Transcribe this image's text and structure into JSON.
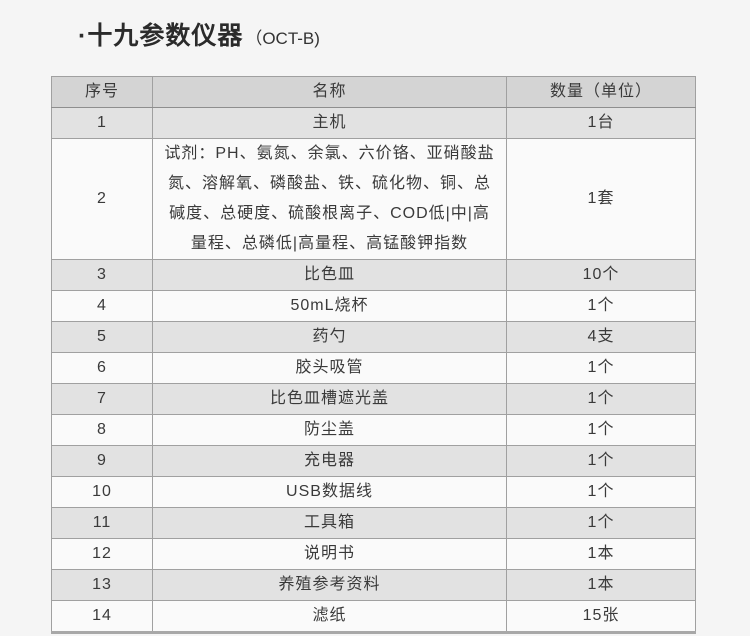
{
  "title": {
    "main": "·十九参数仪器",
    "suffix": "（OCT-B)"
  },
  "table": {
    "headers": [
      "序号",
      "名称",
      "数量（单位）"
    ],
    "rows": [
      {
        "no": "1",
        "name": "主机",
        "qty": "1台"
      },
      {
        "no": "2",
        "name": "试剂：PH、氨氮、余氯、六价铬、亚硝酸盐氮、溶解氧、磷酸盐、铁、硫化物、铜、总碱度、总硬度、硫酸根离子、COD低|中|高量程、总磷低|高量程、高锰酸钾指数",
        "qty": "1套"
      },
      {
        "no": "3",
        "name": "比色皿",
        "qty": "10个"
      },
      {
        "no": "4",
        "name": "50mL烧杯",
        "qty": "1个"
      },
      {
        "no": "5",
        "name": "药勺",
        "qty": "4支"
      },
      {
        "no": "6",
        "name": "胶头吸管",
        "qty": "1个"
      },
      {
        "no": "7",
        "name": "比色皿槽遮光盖",
        "qty": "1个"
      },
      {
        "no": "8",
        "name": "防尘盖",
        "qty": "1个"
      },
      {
        "no": "9",
        "name": "充电器",
        "qty": "1个"
      },
      {
        "no": "10",
        "name": "USB数据线",
        "qty": "1个"
      },
      {
        "no": "11",
        "name": "工具箱",
        "qty": "1个"
      },
      {
        "no": "12",
        "name": "说明书",
        "qty": "1本"
      },
      {
        "no": "13",
        "name": "养殖参考资料",
        "qty": "1本"
      },
      {
        "no": "14",
        "name": "滤纸",
        "qty": "15张"
      }
    ]
  },
  "colors": {
    "page_background": "#f5f5f5",
    "header_row_bg": "#d4d4d4",
    "odd_row_bg": "#e2e2e2",
    "even_row_bg": "#fafafa",
    "border": "#a0a0a0",
    "text": "#3a3a3a"
  }
}
